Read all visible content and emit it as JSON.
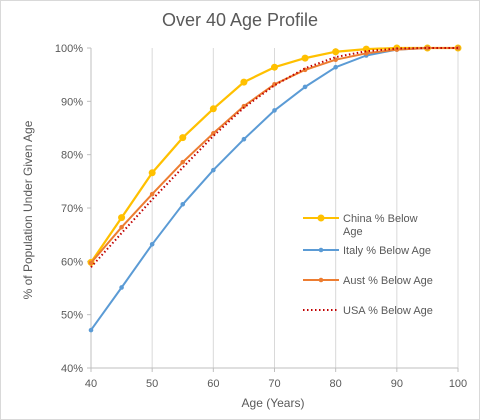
{
  "chart_data": {
    "type": "line",
    "title": "Over 40 Age Profile",
    "xlabel": "Age  (Years)",
    "ylabel": "% of Population Under Given Age",
    "xlim": [
      40,
      100
    ],
    "ylim": [
      40,
      100
    ],
    "x_ticks": [
      40,
      50,
      60,
      70,
      80,
      90,
      100
    ],
    "y_ticks": [
      40,
      50,
      60,
      70,
      80,
      90,
      100
    ],
    "x_tick_labels": [
      "40",
      "50",
      "60",
      "70",
      "80",
      "90",
      "100"
    ],
    "y_tick_labels": [
      "40%",
      "50%",
      "60%",
      "70%",
      "80%",
      "90%",
      "100%"
    ],
    "grid": "vertical-major",
    "legend_position": "right-center",
    "series": [
      {
        "name": "China % Below Age",
        "legend_lines": [
          "China % Below",
          "Age"
        ],
        "color": "#FFC000",
        "style": "line-marker",
        "x": [
          40,
          45,
          50,
          55,
          60,
          65,
          70,
          75,
          80,
          85,
          90,
          95,
          100
        ],
        "y": [
          59.8,
          68.2,
          76.6,
          83.2,
          88.6,
          93.6,
          96.4,
          98.1,
          99.3,
          99.8,
          100.0,
          100.0,
          100.0
        ]
      },
      {
        "name": "Italy % Below Age",
        "legend_lines": [
          "Italy % Below Age"
        ],
        "color": "#5B9BD5",
        "style": "line-marker",
        "x": [
          40,
          45,
          50,
          55,
          60,
          65,
          70,
          75,
          80,
          85,
          90,
          95,
          100
        ],
        "y": [
          47.1,
          55.1,
          63.2,
          70.7,
          77.1,
          82.9,
          88.3,
          92.7,
          96.4,
          98.6,
          99.7,
          100.0,
          100.0
        ]
      },
      {
        "name": "Aust % Below Age",
        "legend_lines": [
          "Aust % Below Age"
        ],
        "color": "#ED7D31",
        "style": "line-marker",
        "x": [
          40,
          45,
          50,
          55,
          60,
          65,
          70,
          75,
          80,
          85,
          90,
          95,
          100
        ],
        "y": [
          59.7,
          66.4,
          72.6,
          78.6,
          84.0,
          89.1,
          93.2,
          95.9,
          97.8,
          99.0,
          99.7,
          100.0,
          100.0
        ]
      },
      {
        "name": "USA % Below Age",
        "legend_lines": [
          "USA % Below Age"
        ],
        "color": "#C00000",
        "style": "dotted",
        "x": [
          40,
          45,
          50,
          55,
          60,
          65,
          70,
          75,
          80,
          85,
          90,
          95,
          100
        ],
        "y": [
          58.9,
          65.3,
          71.6,
          77.6,
          83.5,
          88.8,
          93.0,
          96.2,
          98.3,
          99.4,
          99.9,
          100.0,
          100.0
        ]
      }
    ]
  }
}
